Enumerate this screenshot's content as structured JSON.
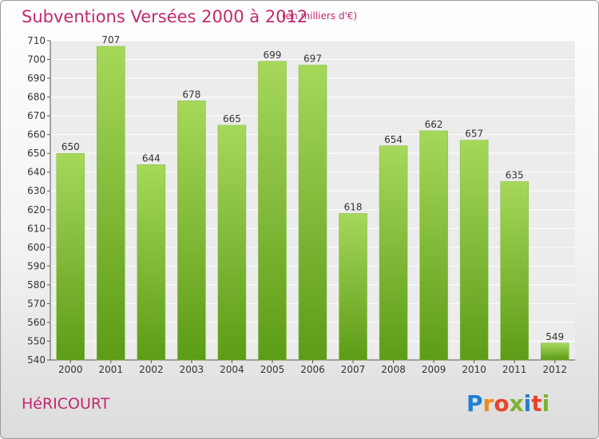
{
  "header": {
    "title": "Subventions Versées 2000 à 2012",
    "unit": "(en milliers d'€)"
  },
  "footer": {
    "commune": "HéRICOURT",
    "logo_text": "Proxiti"
  },
  "colors": {
    "title": "#c2286e",
    "bar_light": "#a6d85a",
    "bar_dark": "#5c9c16",
    "logo": [
      "#1f7fd1",
      "#f08a1a",
      "#e8452b",
      "#7bb32e",
      "#1f7fd1",
      "#e8452b",
      "#7bb32e"
    ]
  },
  "chart_data": {
    "type": "bar",
    "title": "Subventions Versées 2000 à 2012",
    "categories": [
      "2000",
      "2001",
      "2002",
      "2003",
      "2004",
      "2005",
      "2006",
      "2007",
      "2008",
      "2009",
      "2010",
      "2011",
      "2012"
    ],
    "values": [
      650,
      707,
      644,
      678,
      665,
      699,
      697,
      618,
      654,
      662,
      657,
      635,
      549
    ],
    "ylim": [
      540,
      710
    ],
    "yticks": [
      540,
      550,
      560,
      570,
      580,
      590,
      600,
      610,
      620,
      630,
      640,
      650,
      660,
      670,
      680,
      690,
      700,
      710
    ],
    "grid": true,
    "data_labels": true
  }
}
